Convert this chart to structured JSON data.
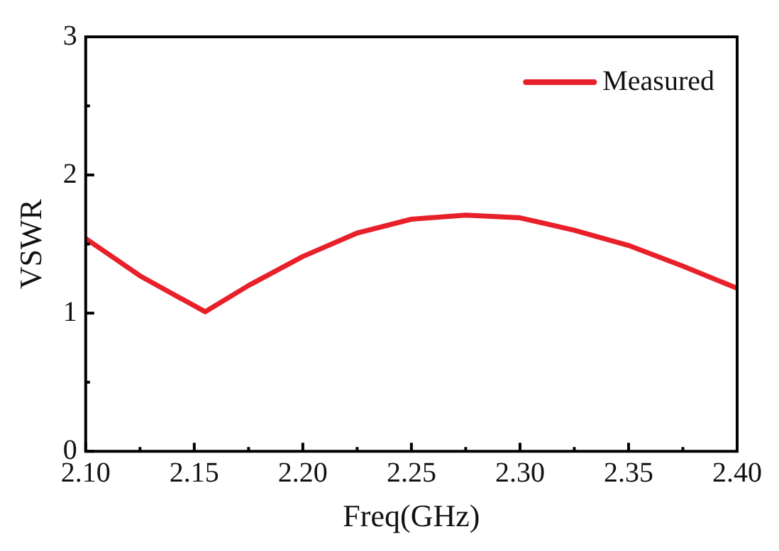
{
  "chart_data": {
    "type": "line",
    "xlabel": "Freq(GHz)",
    "ylabel": "VSWR",
    "x": [
      2.1,
      2.125,
      2.155,
      2.175,
      2.2,
      2.225,
      2.25,
      2.275,
      2.3,
      2.325,
      2.35,
      2.375,
      2.4
    ],
    "series": [
      {
        "name": "Measured",
        "color": "#e8202a",
        "values": [
          1.54,
          1.27,
          1.01,
          1.2,
          1.41,
          1.58,
          1.68,
          1.71,
          1.69,
          1.6,
          1.49,
          1.34,
          1.18
        ]
      }
    ],
    "xlim": [
      2.1,
      2.4
    ],
    "ylim": [
      0,
      3
    ],
    "xticks": [
      {
        "value": 2.1,
        "label": "2.10"
      },
      {
        "value": 2.125,
        "label": null
      },
      {
        "value": 2.15,
        "label": "2.15"
      },
      {
        "value": 2.175,
        "label": null
      },
      {
        "value": 2.2,
        "label": "2.20"
      },
      {
        "value": 2.225,
        "label": null
      },
      {
        "value": 2.25,
        "label": "2.25"
      },
      {
        "value": 2.275,
        "label": null
      },
      {
        "value": 2.3,
        "label": "2.30"
      },
      {
        "value": 2.325,
        "label": null
      },
      {
        "value": 2.35,
        "label": "2.35"
      },
      {
        "value": 2.375,
        "label": null
      },
      {
        "value": 2.4,
        "label": "2.40"
      }
    ],
    "yticks": [
      0,
      {
        "value": 0.5,
        "label": null
      },
      1,
      {
        "value": 1.5,
        "label": null
      },
      2,
      {
        "value": 2.5,
        "label": null
      },
      3
    ],
    "legend": "top right",
    "grid": false,
    "marker": "none",
    "line_style": "solid"
  }
}
